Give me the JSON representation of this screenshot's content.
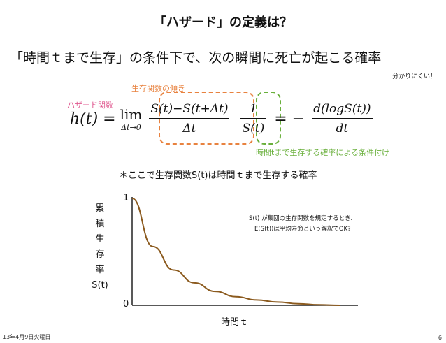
{
  "slide": {
    "title": "「ハザード」の定義は？",
    "subtitle": "「時間ｔまで生存」の条件下で、次の瞬間に死亡が起こる確率",
    "hard_to_understand": "分かりにくい！",
    "hazard_label": "ハザード関数",
    "slope_label": "生存関数の傾き",
    "conditional_label": "時間tまで生存する確率による条件付け",
    "survival_note": "＊ここで生存関数S(t)は時間ｔまで生存する確率",
    "chart_note_line1": "S(t) が集団の生存関数を規定するとき、",
    "chart_note_line2": "E(S(t))は平均寿命という解釈でOK?",
    "footer_date": "13年4月9日火曜日",
    "page_number": "6"
  },
  "formula": {
    "lhs": "h(t) =",
    "lim": "lim",
    "lim_sub": "Δt→0",
    "num1": "S(t)−S(t+Δt)",
    "den1": "Δt",
    "num2": "1",
    "den2": "S(t)",
    "eq_minus": "= −",
    "num3": "d(logS(t))",
    "den3": "dt"
  },
  "chart_data": {
    "type": "line",
    "ylabel_chars": [
      "累",
      "積",
      "生",
      "存",
      "率",
      "S(t)"
    ],
    "xlabel": "時間ｔ",
    "yticks": [
      "1",
      "0"
    ],
    "ylim": [
      0,
      1
    ],
    "series": [
      {
        "color": "#8b5a1e",
        "x": [
          0,
          0.1,
          0.2,
          0.3,
          0.4,
          0.5,
          0.6,
          0.7,
          0.8,
          0.9,
          1.0
        ],
        "y": [
          1.0,
          0.55,
          0.33,
          0.21,
          0.13,
          0.08,
          0.05,
          0.03,
          0.015,
          0.005,
          0.0
        ]
      }
    ],
    "grid": false
  }
}
